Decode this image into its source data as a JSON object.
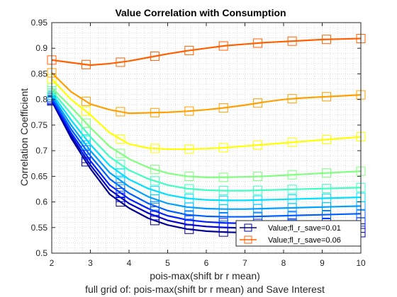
{
  "chart_data": {
    "type": "line",
    "title": "Value Correlation with Consumption",
    "xlabel": "pois-max(shift br r mean)",
    "xlabel2": "full grid of: pois-max(shift br r mean) and Save Interest",
    "ylabel": "Correlation Coefficient",
    "xlim": [
      2,
      10
    ],
    "ylim": [
      0.5,
      0.95
    ],
    "xticks": [
      2,
      3,
      4,
      5,
      6,
      7,
      8,
      9,
      10
    ],
    "yticks": [
      0.5,
      0.55,
      0.6,
      0.65,
      0.7,
      0.75,
      0.8,
      0.85,
      0.9,
      0.95
    ],
    "grid": "minor dotted",
    "legend_position": "bottom-right",
    "legend": [
      {
        "label": "Value;fl_r_save=0.01",
        "series": 0
      },
      {
        "label": "Value;fl_r_save=0.06",
        "series": 10
      }
    ],
    "marker_x": [
      2,
      2.889,
      3.778,
      4.667,
      5.556,
      6.444,
      7.333,
      8.222,
      9.111,
      10
    ],
    "x": [
      2,
      2.5,
      3,
      3.5,
      4,
      4.5,
      5,
      5.5,
      6,
      6.5,
      7,
      7.5,
      8,
      8.5,
      9,
      9.5,
      10
    ],
    "series": [
      {
        "color": "#00008f",
        "values": [
          0.797,
          0.725,
          0.665,
          0.615,
          0.588,
          0.568,
          0.555,
          0.547,
          0.543,
          0.541,
          0.54,
          0.54,
          0.54,
          0.54,
          0.54,
          0.54,
          0.54
        ]
      },
      {
        "color": "#0000c8",
        "values": [
          0.799,
          0.73,
          0.672,
          0.624,
          0.597,
          0.578,
          0.564,
          0.556,
          0.552,
          0.55,
          0.549,
          0.549,
          0.549,
          0.549,
          0.549,
          0.549,
          0.549
        ]
      },
      {
        "color": "#0020ff",
        "values": [
          0.801,
          0.735,
          0.68,
          0.633,
          0.606,
          0.587,
          0.573,
          0.565,
          0.561,
          0.559,
          0.558,
          0.558,
          0.559,
          0.559,
          0.56,
          0.56,
          0.561
        ]
      },
      {
        "color": "#0060ff",
        "values": [
          0.804,
          0.742,
          0.69,
          0.645,
          0.617,
          0.597,
          0.583,
          0.575,
          0.572,
          0.571,
          0.571,
          0.572,
          0.573,
          0.574,
          0.575,
          0.576,
          0.577
        ]
      },
      {
        "color": "#00a0ff",
        "values": [
          0.808,
          0.75,
          0.7,
          0.657,
          0.63,
          0.61,
          0.597,
          0.59,
          0.587,
          0.586,
          0.586,
          0.587,
          0.588,
          0.589,
          0.59,
          0.591,
          0.592
        ]
      },
      {
        "color": "#00e0ff",
        "values": [
          0.812,
          0.76,
          0.712,
          0.671,
          0.644,
          0.626,
          0.614,
          0.607,
          0.604,
          0.603,
          0.603,
          0.604,
          0.605,
          0.606,
          0.607,
          0.608,
          0.609
        ]
      },
      {
        "color": "#40ffbf",
        "values": [
          0.817,
          0.772,
          0.727,
          0.688,
          0.662,
          0.645,
          0.633,
          0.626,
          0.623,
          0.622,
          0.622,
          0.623,
          0.624,
          0.625,
          0.626,
          0.627,
          0.628
        ]
      },
      {
        "color": "#80ff80",
        "values": [
          0.823,
          0.785,
          0.745,
          0.708,
          0.684,
          0.667,
          0.656,
          0.65,
          0.648,
          0.648,
          0.649,
          0.65,
          0.652,
          0.654,
          0.656,
          0.658,
          0.66
        ]
      },
      {
        "color": "#ffff00",
        "values": [
          0.84,
          0.8,
          0.77,
          0.735,
          0.713,
          0.705,
          0.703,
          0.703,
          0.704,
          0.706,
          0.709,
          0.712,
          0.715,
          0.718,
          0.721,
          0.724,
          0.727
        ]
      },
      {
        "color": "#ffa000",
        "values": [
          0.852,
          0.815,
          0.791,
          0.78,
          0.773,
          0.774,
          0.775,
          0.777,
          0.78,
          0.784,
          0.789,
          0.795,
          0.8,
          0.803,
          0.805,
          0.807,
          0.809
        ]
      },
      {
        "color": "#ff6000",
        "values": [
          0.877,
          0.872,
          0.867,
          0.87,
          0.875,
          0.882,
          0.889,
          0.895,
          0.9,
          0.905,
          0.908,
          0.911,
          0.913,
          0.915,
          0.917,
          0.918,
          0.919
        ]
      }
    ]
  }
}
